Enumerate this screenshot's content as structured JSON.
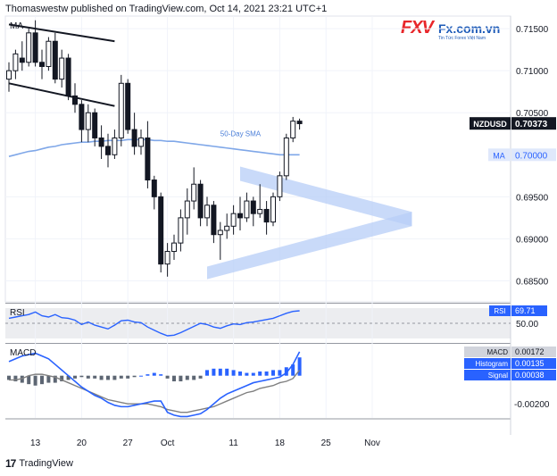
{
  "header": {
    "published": "Thomaswestw published on TradingView.com, Oct 14, 2021 23:21 UTC+1"
  },
  "logo": {
    "mark": "FXV",
    "site": "Fx.com.vn",
    "tagline": "Tin Tức Forex Việt Nam"
  },
  "footer": {
    "brand": "TradingView",
    "brand_mark": "17"
  },
  "colors": {
    "up": "#ffffff",
    "down": "#131722",
    "sma": "#7fa7e8",
    "channel": "#131722",
    "triangle": "#b7cef7",
    "rsi": "#2962ff",
    "macd": "#2962ff",
    "signal": "#808080",
    "hist_pos": "#2962ff",
    "hist_neg": "#5d6673"
  },
  "chart_data": [
    {
      "type": "candlestick",
      "title": "",
      "symbol_label": "NZDUSD",
      "last_price_label": "0.70373",
      "ma_tag": "MA",
      "ma_value_label": "0.70000",
      "pane_label": "MA",
      "sma_annotation": "50-Day SMA",
      "ylim": [
        0.6825,
        0.7165
      ],
      "y_ticks": [
        "0.71500",
        "0.71000",
        "0.70500",
        "0.69500",
        "0.69000",
        "0.68500"
      ],
      "x_tick_labels": [
        "13",
        "20",
        "27",
        "Oct",
        "11",
        "18",
        "25",
        "Nov"
      ],
      "x_ticks_bar_index": [
        4,
        11,
        18,
        24,
        34,
        41,
        48,
        55
      ],
      "candles": [
        {
          "o": 0.709,
          "h": 0.711,
          "l": 0.7075,
          "c": 0.71
        },
        {
          "o": 0.71,
          "h": 0.7125,
          "l": 0.709,
          "c": 0.712
        },
        {
          "o": 0.7115,
          "h": 0.7135,
          "l": 0.71,
          "c": 0.711
        },
        {
          "o": 0.711,
          "h": 0.715,
          "l": 0.7105,
          "c": 0.7145
        },
        {
          "o": 0.7145,
          "h": 0.716,
          "l": 0.7105,
          "c": 0.711
        },
        {
          "o": 0.711,
          "h": 0.7125,
          "l": 0.709,
          "c": 0.7105
        },
        {
          "o": 0.7105,
          "h": 0.714,
          "l": 0.71,
          "c": 0.7135
        },
        {
          "o": 0.7135,
          "h": 0.7145,
          "l": 0.7085,
          "c": 0.709
        },
        {
          "o": 0.709,
          "h": 0.7125,
          "l": 0.708,
          "c": 0.7115
        },
        {
          "o": 0.7115,
          "h": 0.712,
          "l": 0.7065,
          "c": 0.707
        },
        {
          "o": 0.707,
          "h": 0.7085,
          "l": 0.705,
          "c": 0.706
        },
        {
          "o": 0.706,
          "h": 0.7065,
          "l": 0.7015,
          "c": 0.703
        },
        {
          "o": 0.703,
          "h": 0.706,
          "l": 0.7015,
          "c": 0.705
        },
        {
          "o": 0.705,
          "h": 0.7055,
          "l": 0.701,
          "c": 0.702
        },
        {
          "o": 0.702,
          "h": 0.7035,
          "l": 0.6995,
          "c": 0.701
        },
        {
          "o": 0.701,
          "h": 0.7025,
          "l": 0.6985,
          "c": 0.7
        },
        {
          "o": 0.7,
          "h": 0.703,
          "l": 0.6995,
          "c": 0.702
        },
        {
          "o": 0.702,
          "h": 0.7095,
          "l": 0.701,
          "c": 0.7085
        },
        {
          "o": 0.7085,
          "h": 0.709,
          "l": 0.7025,
          "c": 0.703
        },
        {
          "o": 0.703,
          "h": 0.705,
          "l": 0.7,
          "c": 0.701
        },
        {
          "o": 0.701,
          "h": 0.703,
          "l": 0.7,
          "c": 0.702
        },
        {
          "o": 0.702,
          "h": 0.704,
          "l": 0.696,
          "c": 0.697
        },
        {
          "o": 0.697,
          "h": 0.6975,
          "l": 0.6935,
          "c": 0.695
        },
        {
          "o": 0.695,
          "h": 0.6955,
          "l": 0.686,
          "c": 0.687
        },
        {
          "o": 0.687,
          "h": 0.6895,
          "l": 0.6855,
          "c": 0.6885
        },
        {
          "o": 0.6885,
          "h": 0.6905,
          "l": 0.6875,
          "c": 0.6895
        },
        {
          "o": 0.6895,
          "h": 0.6935,
          "l": 0.6885,
          "c": 0.6925
        },
        {
          "o": 0.6925,
          "h": 0.696,
          "l": 0.6905,
          "c": 0.6945
        },
        {
          "o": 0.6945,
          "h": 0.6985,
          "l": 0.6935,
          "c": 0.6965
        },
        {
          "o": 0.6965,
          "h": 0.697,
          "l": 0.6915,
          "c": 0.6925
        },
        {
          "o": 0.6925,
          "h": 0.695,
          "l": 0.6915,
          "c": 0.694
        },
        {
          "o": 0.694,
          "h": 0.6945,
          "l": 0.6895,
          "c": 0.6905
        },
        {
          "o": 0.6905,
          "h": 0.692,
          "l": 0.6875,
          "c": 0.691
        },
        {
          "o": 0.691,
          "h": 0.693,
          "l": 0.69,
          "c": 0.6915
        },
        {
          "o": 0.6915,
          "h": 0.694,
          "l": 0.6905,
          "c": 0.693
        },
        {
          "o": 0.693,
          "h": 0.695,
          "l": 0.691,
          "c": 0.6925
        },
        {
          "o": 0.6925,
          "h": 0.6955,
          "l": 0.692,
          "c": 0.6945
        },
        {
          "o": 0.6945,
          "h": 0.695,
          "l": 0.6915,
          "c": 0.693
        },
        {
          "o": 0.693,
          "h": 0.6965,
          "l": 0.6925,
          "c": 0.6935
        },
        {
          "o": 0.6935,
          "h": 0.6945,
          "l": 0.6905,
          "c": 0.692
        },
        {
          "o": 0.692,
          "h": 0.6955,
          "l": 0.6915,
          "c": 0.695
        },
        {
          "o": 0.695,
          "h": 0.698,
          "l": 0.6945,
          "c": 0.6975
        },
        {
          "o": 0.6975,
          "h": 0.7025,
          "l": 0.697,
          "c": 0.702
        },
        {
          "o": 0.702,
          "h": 0.7045,
          "l": 0.7015,
          "c": 0.704
        },
        {
          "o": 0.704,
          "h": 0.7043,
          "l": 0.703,
          "c": 0.7037
        }
      ],
      "sma_50": [
        0.6998,
        0.7,
        0.7002,
        0.7004,
        0.7005,
        0.7007,
        0.7009,
        0.701,
        0.7012,
        0.7013,
        0.7014,
        0.7015,
        0.7015,
        0.7016,
        0.7016,
        0.7017,
        0.7017,
        0.7017,
        0.7018,
        0.7018,
        0.7018,
        0.7018,
        0.7017,
        0.7017,
        0.7016,
        0.7016,
        0.7015,
        0.7014,
        0.7013,
        0.7012,
        0.7011,
        0.701,
        0.7009,
        0.7008,
        0.7007,
        0.7006,
        0.7005,
        0.7004,
        0.7003,
        0.7002,
        0.7001,
        0.7,
        0.7,
        0.7,
        0.7
      ]
    },
    {
      "type": "line",
      "pane_label": "RSI",
      "value_label": "69.71",
      "level_label": "50.00",
      "ylim": [
        20,
        80
      ],
      "level": 50,
      "values": [
        58,
        60,
        62,
        64,
        68,
        62,
        60,
        64,
        59,
        58,
        55,
        48,
        52,
        47,
        44,
        41,
        47,
        54,
        55,
        52,
        51,
        44,
        39,
        34,
        30,
        31,
        35,
        40,
        45,
        50,
        48,
        44,
        42,
        46,
        49,
        48,
        51,
        52,
        54,
        56,
        58,
        62,
        66,
        69,
        70
      ]
    },
    {
      "type": "bar",
      "pane_label": "MACD",
      "macd_tag": "MACD",
      "macd_value_label": "0.00172",
      "histogram_tag": "Histogram",
      "histogram_value_label": "0.00135",
      "signal_tag": "Signal",
      "signal_value_label": "0.00038",
      "y_tick_label": "-0.00200",
      "ylim": [
        -0.003,
        0.0022
      ],
      "macd": [
        0.001,
        0.0012,
        0.0014,
        0.0015,
        0.0016,
        0.0014,
        0.0012,
        0.0008,
        0.0004,
        0.0,
        -0.0004,
        -0.0008,
        -0.0011,
        -0.0014,
        -0.0016,
        -0.0019,
        -0.0021,
        -0.0022,
        -0.0022,
        -0.0021,
        -0.002,
        -0.0019,
        -0.0018,
        -0.0018,
        -0.0026,
        -0.0028,
        -0.0029,
        -0.0029,
        -0.0028,
        -0.0027,
        -0.0024,
        -0.002,
        -0.0016,
        -0.0013,
        -0.0011,
        -0.0009,
        -0.0007,
        -0.0005,
        -0.0004,
        -0.0003,
        -0.0002,
        -0.0001,
        0.0002,
        0.0008,
        0.0017
      ],
      "signal": [
        -0.0003,
        -0.0003,
        -0.0002,
        0.0,
        0.0001,
        0.0001,
        0.0,
        -0.0001,
        -0.0003,
        -0.0005,
        -0.0007,
        -0.0009,
        -0.0011,
        -0.0013,
        -0.0015,
        -0.0017,
        -0.0018,
        -0.0019,
        -0.002,
        -0.002,
        -0.002,
        -0.002,
        -0.0021,
        -0.0022,
        -0.0024,
        -0.0025,
        -0.0026,
        -0.0026,
        -0.0025,
        -0.0024,
        -0.0023,
        -0.0022,
        -0.002,
        -0.0018,
        -0.0016,
        -0.0014,
        -0.0012,
        -0.0011,
        -0.0009,
        -0.0008,
        -0.0007,
        -0.0005,
        -0.0004,
        -0.0002,
        0.0004
      ],
      "histogram": [
        -0.0003,
        -0.0004,
        -0.0005,
        -0.0006,
        -0.0007,
        -0.0006,
        -0.0005,
        -0.0005,
        -0.0004,
        -0.0003,
        -0.0002,
        -0.0001,
        -0.0002,
        -0.0002,
        -0.0003,
        -0.0003,
        -0.0003,
        -0.0002,
        -0.0002,
        -0.0001,
        0.0,
        0.0001,
        0.0002,
        0.0001,
        -0.0002,
        -0.0004,
        -0.0004,
        -0.0003,
        -0.0003,
        -0.0002,
        0.0004,
        0.0005,
        0.0005,
        0.0005,
        0.0004,
        0.0003,
        0.0002,
        0.0002,
        0.0003,
        0.0003,
        0.0004,
        0.0004,
        0.0006,
        0.0008,
        0.0013
      ]
    }
  ]
}
